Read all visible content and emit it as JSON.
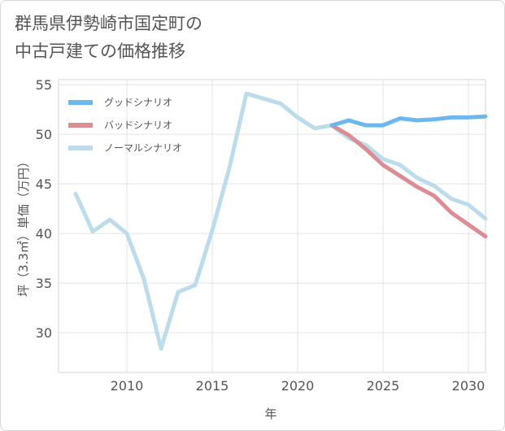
{
  "chart_data": {
    "type": "line",
    "title": "群馬県伊勢崎市国定町の中古戸建ての価格推移",
    "title_lines": [
      "群馬県伊勢崎市国定町の",
      "中古戸建ての価格推移"
    ],
    "xlabel": "年",
    "ylabel": "坪（3.3㎡）単価（万円）",
    "xlim": [
      2006,
      2031
    ],
    "ylim": [
      26,
      55.5
    ],
    "xticks": [
      2010,
      2015,
      2020,
      2025,
      2030
    ],
    "yticks": [
      30,
      35,
      40,
      45,
      50,
      55
    ],
    "legend_position": "top-left",
    "series": [
      {
        "name": "グッドシナリオ",
        "color": "#6cb8ec",
        "x": [
          2022,
          2023,
          2024,
          2025,
          2026,
          2027,
          2028,
          2029,
          2030,
          2031
        ],
        "values": [
          50.9,
          51.4,
          50.9,
          50.9,
          51.6,
          51.4,
          51.5,
          51.7,
          51.7,
          51.8
        ]
      },
      {
        "name": "バッドシナリオ",
        "color": "#dc8c93",
        "x": [
          2022,
          2023,
          2024,
          2025,
          2026,
          2027,
          2028,
          2029,
          2030,
          2031
        ],
        "values": [
          50.9,
          49.9,
          48.5,
          46.9,
          45.8,
          44.7,
          43.8,
          42.1,
          40.9,
          39.7
        ]
      },
      {
        "name": "ノーマルシナリオ",
        "color": "#bcdcec",
        "x": [
          2007,
          2008,
          2009,
          2010,
          2011,
          2012,
          2013,
          2014,
          2015,
          2016,
          2017,
          2018,
          2019,
          2020,
          2021,
          2022,
          2023,
          2024,
          2025,
          2026,
          2027,
          2028,
          2029,
          2030,
          2031
        ],
        "values": [
          44.0,
          40.2,
          41.4,
          40.0,
          35.4,
          28.4,
          34.1,
          34.8,
          40.3,
          46.6,
          54.1,
          53.6,
          53.1,
          51.7,
          50.6,
          50.9,
          49.6,
          48.9,
          47.5,
          46.9,
          45.6,
          44.8,
          43.5,
          42.9,
          41.5
        ]
      }
    ]
  }
}
